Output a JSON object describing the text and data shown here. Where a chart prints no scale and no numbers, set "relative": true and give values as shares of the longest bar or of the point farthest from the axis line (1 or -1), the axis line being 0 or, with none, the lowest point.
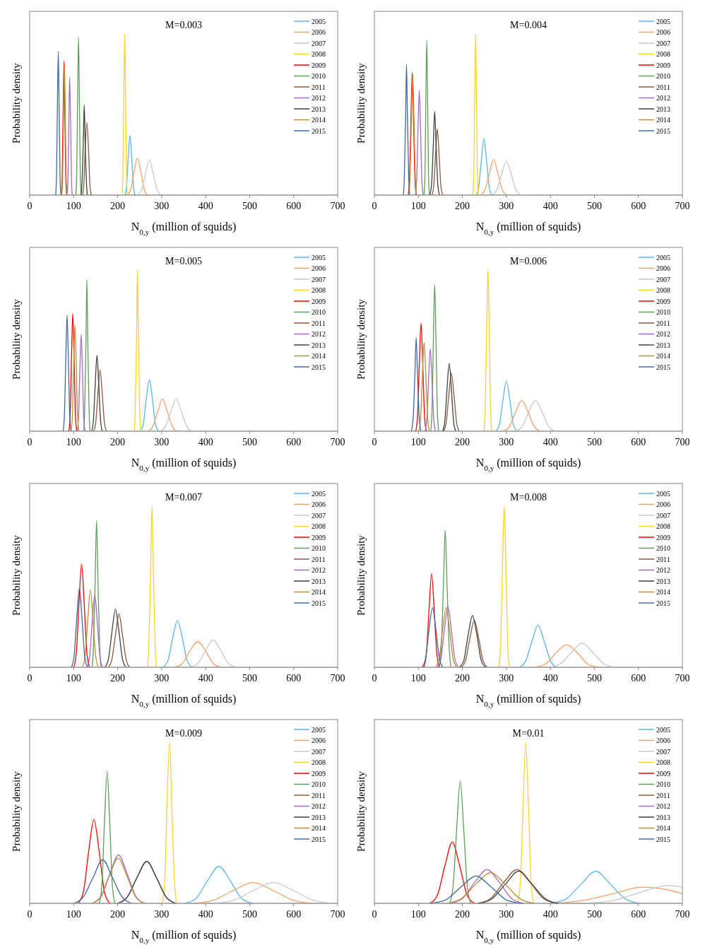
{
  "chart_data": [
    {
      "type": "line",
      "title": "M=0.003",
      "xlabel": "N$_{0,y}$ (million of squids)",
      "ylabel": "Probability density",
      "relative": true,
      "xlim": [
        0,
        700
      ],
      "xticks": [
        0,
        100,
        200,
        300,
        400,
        500,
        600,
        700
      ],
      "legend": "top right",
      "series": [
        {
          "name": "2005",
          "color": "#5bb5e8",
          "x": [
            216,
            220,
            224,
            228,
            232,
            236,
            240
          ],
          "values": [
            0,
            0.05,
            0.23,
            0.37,
            0.23,
            0.05,
            0
          ]
        },
        {
          "name": "2006",
          "color": "#f4a06a",
          "x": [
            221,
            229,
            237,
            245,
            253,
            261,
            269
          ],
          "values": [
            0,
            0.03,
            0.14,
            0.23,
            0.14,
            0.03,
            0
          ]
        },
        {
          "name": "2007",
          "color": "#c8c8c8",
          "x": [
            245,
            254,
            263,
            272,
            281,
            290,
            299
          ],
          "values": [
            0,
            0.03,
            0.13,
            0.22,
            0.13,
            0.03,
            0
          ]
        },
        {
          "name": "2008",
          "color": "#ffd12e",
          "x": [
            210,
            212,
            214,
            216,
            218,
            220,
            222
          ],
          "values": [
            0,
            0.14,
            0.61,
            1,
            0.61,
            0.14,
            0
          ]
        },
        {
          "name": "2009",
          "color": "#ff0000",
          "x": [
            72,
            74,
            76,
            78,
            80,
            82,
            84
          ],
          "values": [
            0,
            0.12,
            0.51,
            0.83,
            0.51,
            0.12,
            0
          ]
        },
        {
          "name": "2010",
          "color": "#5f9e5a",
          "x": [
            105,
            107,
            109,
            111,
            113,
            115,
            117
          ],
          "values": [
            0,
            0.14,
            0.6,
            0.98,
            0.6,
            0.14,
            0
          ]
        },
        {
          "name": "2011",
          "color": "#8b5a3c",
          "x": [
            120,
            123,
            126,
            130,
            134,
            137,
            140
          ],
          "values": [
            0,
            0.06,
            0.27,
            0.45,
            0.27,
            0.06,
            0
          ]
        },
        {
          "name": "2012",
          "color": "#a569c8",
          "x": [
            85,
            87,
            89,
            91,
            93,
            95,
            97
          ],
          "values": [
            0,
            0.1,
            0.45,
            0.73,
            0.45,
            0.1,
            0
          ]
        },
        {
          "name": "2013",
          "color": "#404040",
          "x": [
            117,
            119,
            122,
            124,
            126,
            129,
            131
          ],
          "values": [
            0,
            0.08,
            0.34,
            0.56,
            0.34,
            0.08,
            0
          ]
        },
        {
          "name": "2014",
          "color": "#b8903a",
          "x": [
            73,
            75,
            77,
            79,
            81,
            83,
            85
          ],
          "values": [
            0,
            0.11,
            0.5,
            0.82,
            0.5,
            0.11,
            0
          ]
        },
        {
          "name": "2015",
          "color": "#3f6aa0",
          "x": [
            59,
            61,
            63,
            65,
            67,
            69,
            71
          ],
          "values": [
            0,
            0.12,
            0.54,
            0.89,
            0.54,
            0.12,
            0
          ]
        }
      ]
    },
    {
      "type": "line",
      "title": "M=0.004",
      "xlabel": "N$_{0,y}$ (million of squids)",
      "ylabel": "Probability density",
      "relative": true,
      "xlim": [
        0,
        700
      ],
      "xticks": [
        0,
        100,
        200,
        300,
        400,
        500,
        600,
        700
      ],
      "legend": "top right",
      "series": [
        {
          "name": "2005",
          "color": "#5bb5e8",
          "x": [
            231,
            237,
            243,
            249,
            255,
            261,
            267
          ],
          "values": [
            0,
            0.05,
            0.21,
            0.35,
            0.21,
            0.05,
            0
          ]
        },
        {
          "name": "2006",
          "color": "#f4a06a",
          "x": [
            241,
            251,
            261,
            271,
            281,
            291,
            301
          ],
          "values": [
            0,
            0.03,
            0.13,
            0.22,
            0.13,
            0.03,
            0
          ]
        },
        {
          "name": "2007",
          "color": "#c8c8c8",
          "x": [
            267,
            278,
            289,
            300,
            311,
            322,
            333
          ],
          "values": [
            0,
            0.03,
            0.13,
            0.21,
            0.13,
            0.03,
            0
          ]
        },
        {
          "name": "2008",
          "color": "#ffd12e",
          "x": [
            224,
            226,
            228,
            230,
            232,
            234,
            236
          ],
          "values": [
            0,
            0.14,
            0.61,
            1,
            0.61,
            0.14,
            0
          ]
        },
        {
          "name": "2009",
          "color": "#ff0000",
          "x": [
            77,
            80,
            83,
            86,
            89,
            92,
            95
          ],
          "values": [
            0,
            0.11,
            0.46,
            0.76,
            0.46,
            0.11,
            0
          ]
        },
        {
          "name": "2010",
          "color": "#5f9e5a",
          "x": [
            113,
            115,
            117,
            119,
            121,
            123,
            125
          ],
          "values": [
            0,
            0.13,
            0.59,
            0.96,
            0.59,
            0.13,
            0
          ]
        },
        {
          "name": "2011",
          "color": "#8b5a3c",
          "x": [
            131,
            135,
            139,
            143,
            147,
            151,
            155
          ],
          "values": [
            0,
            0.06,
            0.25,
            0.41,
            0.25,
            0.06,
            0
          ]
        },
        {
          "name": "2012",
          "color": "#a569c8",
          "x": [
            93,
            96,
            99,
            102,
            105,
            108,
            111
          ],
          "values": [
            0,
            0.09,
            0.4,
            0.65,
            0.4,
            0.09,
            0
          ]
        },
        {
          "name": "2013",
          "color": "#404040",
          "x": [
            126,
            130,
            134,
            137,
            140,
            144,
            148
          ],
          "values": [
            0,
            0.07,
            0.32,
            0.52,
            0.32,
            0.07,
            0
          ]
        },
        {
          "name": "2014",
          "color": "#b8903a",
          "x": [
            78,
            81,
            84,
            87,
            90,
            93,
            96
          ],
          "values": [
            0,
            0.11,
            0.46,
            0.75,
            0.46,
            0.11,
            0
          ]
        },
        {
          "name": "2015",
          "color": "#3f6aa0",
          "x": [
            66,
            68,
            71,
            73,
            75,
            78,
            80
          ],
          "values": [
            0,
            0.11,
            0.49,
            0.81,
            0.49,
            0.11,
            0
          ]
        }
      ]
    },
    {
      "type": "line",
      "title": "M=0.005",
      "xlabel": "N$_{0,y}$ (million of squids)",
      "ylabel": "Probability density",
      "relative": true,
      "xlim": [
        0,
        700
      ],
      "xticks": [
        0,
        100,
        200,
        300,
        400,
        500,
        600,
        700
      ],
      "legend": "top right",
      "series": [
        {
          "name": "2005",
          "color": "#5bb5e8",
          "x": [
            251,
            258,
            265,
            272,
            279,
            286,
            293
          ],
          "values": [
            0,
            0.04,
            0.2,
            0.32,
            0.2,
            0.04,
            0
          ]
        },
        {
          "name": "2006",
          "color": "#f4a06a",
          "x": [
            269,
            280,
            291,
            302,
            313,
            324,
            335
          ],
          "values": [
            0,
            0.03,
            0.12,
            0.2,
            0.12,
            0.03,
            0
          ]
        },
        {
          "name": "2007",
          "color": "#c8c8c8",
          "x": [
            297,
            309,
            321,
            333,
            345,
            357,
            369
          ],
          "values": [
            0,
            0.03,
            0.12,
            0.2,
            0.12,
            0.03,
            0
          ]
        },
        {
          "name": "2008",
          "color": "#ffd12e",
          "x": [
            238,
            240,
            243,
            245,
            247,
            250,
            252
          ],
          "values": [
            0,
            0.14,
            0.61,
            1,
            0.61,
            0.14,
            0
          ]
        },
        {
          "name": "2009",
          "color": "#ff0000",
          "x": [
            89,
            92,
            95,
            98,
            101,
            104,
            107
          ],
          "values": [
            0,
            0.1,
            0.45,
            0.73,
            0.45,
            0.1,
            0
          ]
        },
        {
          "name": "2010",
          "color": "#5f9e5a",
          "x": [
            123,
            125,
            128,
            130,
            132,
            135,
            137
          ],
          "values": [
            0,
            0.13,
            0.57,
            0.94,
            0.57,
            0.13,
            0
          ]
        },
        {
          "name": "2011",
          "color": "#8b5a3c",
          "x": [
            145,
            150,
            155,
            160,
            165,
            170,
            175
          ],
          "values": [
            0,
            0.05,
            0.23,
            0.38,
            0.23,
            0.05,
            0
          ]
        },
        {
          "name": "2012",
          "color": "#a569c8",
          "x": [
            108,
            111,
            114,
            117,
            120,
            123,
            126
          ],
          "values": [
            0,
            0.08,
            0.37,
            0.6,
            0.37,
            0.08,
            0
          ]
        },
        {
          "name": "2013",
          "color": "#404040",
          "x": [
            141,
            145,
            149,
            153,
            157,
            161,
            165
          ],
          "values": [
            0,
            0.07,
            0.29,
            0.47,
            0.29,
            0.07,
            0
          ]
        },
        {
          "name": "2014",
          "color": "#b8903a",
          "x": [
            94,
            97,
            100,
            103,
            106,
            109,
            112
          ],
          "values": [
            0,
            0.09,
            0.4,
            0.66,
            0.4,
            0.09,
            0
          ]
        },
        {
          "name": "2015",
          "color": "#3f6aa0",
          "x": [
            76,
            79,
            82,
            85,
            88,
            91,
            94
          ],
          "values": [
            0,
            0.1,
            0.44,
            0.72,
            0.44,
            0.1,
            0
          ]
        }
      ]
    },
    {
      "type": "line",
      "title": "M=0.006",
      "xlabel": "N$_{0,y}$ (million of squids)",
      "ylabel": "Probability density",
      "relative": true,
      "xlim": [
        0,
        700
      ],
      "xticks": [
        0,
        100,
        200,
        300,
        400,
        500,
        600,
        700
      ],
      "legend": "top right",
      "series": [
        {
          "name": "2005",
          "color": "#5bb5e8",
          "x": [
            276,
            284,
            292,
            300,
            308,
            316,
            324
          ],
          "values": [
            0,
            0.04,
            0.19,
            0.31,
            0.19,
            0.04,
            0
          ]
        },
        {
          "name": "2006",
          "color": "#f4a06a",
          "x": [
            293,
            307,
            321,
            335,
            349,
            363,
            377
          ],
          "values": [
            0,
            0.03,
            0.12,
            0.19,
            0.12,
            0.03,
            0
          ]
        },
        {
          "name": "2007",
          "color": "#c8c8c8",
          "x": [
            321,
            336,
            351,
            366,
            381,
            396,
            411
          ],
          "values": [
            0,
            0.03,
            0.12,
            0.19,
            0.12,
            0.03,
            0
          ]
        },
        {
          "name": "2008",
          "color": "#ffd12e",
          "x": [
            249,
            252,
            255,
            258,
            261,
            264,
            267
          ],
          "values": [
            0,
            0.14,
            0.61,
            1,
            0.61,
            0.14,
            0
          ]
        },
        {
          "name": "2009",
          "color": "#ff0000",
          "x": [
            94,
            98,
            102,
            106,
            110,
            114,
            118
          ],
          "values": [
            0,
            0.09,
            0.41,
            0.67,
            0.41,
            0.09,
            0
          ]
        },
        {
          "name": "2010",
          "color": "#5f9e5a",
          "x": [
            128,
            131,
            134,
            137,
            140,
            143,
            146
          ],
          "values": [
            0,
            0.13,
            0.56,
            0.91,
            0.56,
            0.13,
            0
          ]
        },
        {
          "name": "2011",
          "color": "#8b5a3c",
          "x": [
            157,
            163,
            169,
            175,
            181,
            187,
            193
          ],
          "values": [
            0,
            0.05,
            0.22,
            0.36,
            0.22,
            0.05,
            0
          ]
        },
        {
          "name": "2012",
          "color": "#a569c8",
          "x": [
            115,
            119,
            123,
            127,
            131,
            135,
            139
          ],
          "values": [
            0,
            0.07,
            0.31,
            0.51,
            0.31,
            0.07,
            0
          ]
        },
        {
          "name": "2013",
          "color": "#404040",
          "x": [
            155,
            160,
            165,
            170,
            175,
            180,
            185
          ],
          "values": [
            0,
            0.06,
            0.26,
            0.42,
            0.26,
            0.06,
            0
          ]
        },
        {
          "name": "2014",
          "color": "#b8903a",
          "x": [
            101,
            105,
            109,
            113,
            117,
            121,
            125
          ],
          "values": [
            0,
            0.08,
            0.34,
            0.55,
            0.34,
            0.08,
            0
          ]
        },
        {
          "name": "2015",
          "color": "#3f6aa0",
          "x": [
            84,
            88,
            92,
            95,
            98,
            102,
            106
          ],
          "values": [
            0,
            0.08,
            0.35,
            0.58,
            0.35,
            0.08,
            0
          ]
        }
      ]
    },
    {
      "type": "line",
      "title": "M=0.007",
      "xlabel": "N$_{0,y}$ (million of squids)",
      "ylabel": "Probability density",
      "relative": true,
      "xlim": [
        0,
        700
      ],
      "xticks": [
        0,
        100,
        200,
        300,
        400,
        500,
        600,
        700
      ],
      "legend": "top right",
      "series": [
        {
          "name": "2005",
          "color": "#5bb5e8",
          "x": [
            303,
            314,
            325,
            336,
            347,
            358,
            369
          ],
          "values": [
            0,
            0.04,
            0.18,
            0.29,
            0.18,
            0.04,
            0
          ]
        },
        {
          "name": "2006",
          "color": "#f4a06a",
          "x": [
            328,
            346,
            364,
            382,
            400,
            418,
            436
          ],
          "values": [
            0,
            0.02,
            0.1,
            0.16,
            0.1,
            0.02,
            0
          ]
        },
        {
          "name": "2007",
          "color": "#c8c8c8",
          "x": [
            363,
            381,
            399,
            417,
            435,
            453,
            471
          ],
          "values": [
            0,
            0.02,
            0.1,
            0.17,
            0.1,
            0.02,
            0
          ]
        },
        {
          "name": "2008",
          "color": "#ffd12e",
          "x": [
            268,
            271,
            275,
            278,
            281,
            285,
            288
          ],
          "values": [
            0,
            0.14,
            0.61,
            1,
            0.61,
            0.14,
            0
          ]
        },
        {
          "name": "2009",
          "color": "#ff0000",
          "x": [
            100,
            106,
            112,
            118,
            124,
            130,
            136
          ],
          "values": [
            0,
            0.09,
            0.39,
            0.64,
            0.39,
            0.09,
            0
          ]
        },
        {
          "name": "2010",
          "color": "#5f9e5a",
          "x": [
            142,
            145,
            149,
            152,
            155,
            159,
            162
          ],
          "values": [
            0,
            0.13,
            0.56,
            0.91,
            0.56,
            0.13,
            0
          ]
        },
        {
          "name": "2011",
          "color": "#8b5a3c",
          "x": [
            179,
            187,
            195,
            203,
            211,
            219,
            227
          ],
          "values": [
            0,
            0.05,
            0.2,
            0.33,
            0.2,
            0.05,
            0
          ]
        },
        {
          "name": "2012",
          "color": "#a569c8",
          "x": [
            130,
            136,
            142,
            148,
            154,
            160,
            166
          ],
          "values": [
            0,
            0.06,
            0.27,
            0.45,
            0.27,
            0.06,
            0
          ]
        },
        {
          "name": "2013",
          "color": "#404040",
          "x": [
            171,
            179,
            187,
            195,
            203,
            211,
            219
          ],
          "values": [
            0,
            0.05,
            0.22,
            0.36,
            0.22,
            0.05,
            0
          ]
        },
        {
          "name": "2014",
          "color": "#b8903a",
          "x": [
            120,
            126,
            132,
            138,
            144,
            150,
            156
          ],
          "values": [
            0,
            0.07,
            0.29,
            0.48,
            0.29,
            0.07,
            0
          ]
        },
        {
          "name": "2015",
          "color": "#3f6aa0",
          "x": [
            95,
            101,
            107,
            113,
            119,
            125,
            131
          ],
          "values": [
            0,
            0.07,
            0.3,
            0.49,
            0.3,
            0.07,
            0
          ]
        }
      ]
    },
    {
      "type": "line",
      "title": "M=0.008",
      "xlabel": "N$_{0,y}$ (million of squids)",
      "ylabel": "Probability density",
      "relative": true,
      "xlim": [
        0,
        700
      ],
      "xticks": [
        0,
        100,
        200,
        300,
        400,
        500,
        600,
        700
      ],
      "legend": "top right",
      "series": [
        {
          "name": "2005",
          "color": "#5bb5e8",
          "x": [
            330,
            344,
            358,
            372,
            386,
            400,
            414
          ],
          "values": [
            0,
            0.04,
            0.16,
            0.26,
            0.16,
            0.04,
            0
          ]
        },
        {
          "name": "2006",
          "color": "#f4a06a",
          "x": [
            365,
            389,
            413,
            437,
            461,
            485,
            509
          ],
          "values": [
            0,
            0.02,
            0.09,
            0.14,
            0.09,
            0.02,
            0
          ]
        },
        {
          "name": "2007",
          "color": "#c8c8c8",
          "x": [
            397,
            422,
            447,
            472,
            497,
            522,
            547
          ],
          "values": [
            0,
            0.02,
            0.09,
            0.15,
            0.09,
            0.02,
            0
          ]
        },
        {
          "name": "2008",
          "color": "#ffd12e",
          "x": [
            283,
            287,
            291,
            295,
            299,
            303,
            307
          ],
          "values": [
            0,
            0.14,
            0.61,
            1,
            0.61,
            0.14,
            0
          ]
        },
        {
          "name": "2009",
          "color": "#ff0000",
          "x": [
            112,
            118,
            124,
            130,
            136,
            142,
            148
          ],
          "values": [
            0,
            0.08,
            0.35,
            0.58,
            0.35,
            0.08,
            0
          ]
        },
        {
          "name": "2010",
          "color": "#5f9e5a",
          "x": [
            148,
            152,
            157,
            161,
            165,
            170,
            174
          ],
          "values": [
            0,
            0.12,
            0.52,
            0.85,
            0.52,
            0.12,
            0
          ]
        },
        {
          "name": "2011",
          "color": "#8b5a3c",
          "x": [
            197,
            207,
            217,
            227,
            237,
            247,
            257
          ],
          "values": [
            0,
            0.04,
            0.18,
            0.29,
            0.18,
            0.04,
            0
          ]
        },
        {
          "name": "2012",
          "color": "#a569c8",
          "x": [
            143,
            151,
            159,
            167,
            175,
            183,
            191
          ],
          "values": [
            0,
            0.05,
            0.23,
            0.38,
            0.23,
            0.05,
            0
          ]
        },
        {
          "name": "2013",
          "color": "#404040",
          "x": [
            193,
            203,
            213,
            223,
            233,
            243,
            253
          ],
          "values": [
            0,
            0.04,
            0.2,
            0.32,
            0.2,
            0.04,
            0
          ]
        },
        {
          "name": "2014",
          "color": "#b8903a",
          "x": [
            139,
            147,
            155,
            163,
            171,
            179,
            187
          ],
          "values": [
            0,
            0.05,
            0.23,
            0.37,
            0.23,
            0.05,
            0
          ]
        },
        {
          "name": "2015",
          "color": "#3f6aa0",
          "x": [
            108,
            116,
            124,
            132,
            140,
            148,
            156
          ],
          "values": [
            0,
            0.05,
            0.23,
            0.37,
            0.23,
            0.05,
            0
          ]
        }
      ]
    },
    {
      "type": "line",
      "title": "M=0.009",
      "xlabel": "N$_{0,y}$ (million of squids)",
      "ylabel": "Probability density",
      "relative": true,
      "xlim": [
        0,
        700
      ],
      "xticks": [
        0,
        100,
        200,
        300,
        400,
        500,
        600,
        700
      ],
      "legend": "top right",
      "series": [
        {
          "name": "2005",
          "color": "#5bb5e8",
          "x": [
            352,
            378,
            404,
            430,
            456,
            482,
            508
          ],
          "values": [
            0,
            0.03,
            0.14,
            0.23,
            0.14,
            0.03,
            0
          ]
        },
        {
          "name": "2006",
          "color": "#f4a06a",
          "x": [
            373,
            418,
            463,
            508,
            553,
            598,
            643
          ],
          "values": [
            0,
            0.02,
            0.08,
            0.13,
            0.08,
            0.02,
            0
          ]
        },
        {
          "name": "2007",
          "color": "#c8c8c8",
          "x": [
            419,
            464,
            509,
            554,
            599,
            644,
            689
          ],
          "values": [
            0,
            0.02,
            0.08,
            0.13,
            0.08,
            0.02,
            0
          ]
        },
        {
          "name": "2008",
          "color": "#ffd12e",
          "x": [
            301,
            307,
            312,
            318,
            323,
            329,
            334
          ],
          "values": [
            0,
            0.14,
            0.61,
            1,
            0.61,
            0.14,
            0
          ]
        },
        {
          "name": "2009",
          "color": "#ff0000",
          "x": [
            110,
            122,
            134,
            146,
            158,
            170,
            182
          ],
          "values": [
            0,
            0.07,
            0.32,
            0.52,
            0.32,
            0.07,
            0
          ]
        },
        {
          "name": "2010",
          "color": "#5f9e5a",
          "x": [
            158,
            164,
            170,
            176,
            182,
            188,
            194
          ],
          "values": [
            0,
            0.11,
            0.5,
            0.82,
            0.5,
            0.11,
            0
          ]
        },
        {
          "name": "2011",
          "color": "#8b5a3c",
          "x": [
            200,
            222,
            244,
            266,
            288,
            310,
            332
          ],
          "values": [
            0,
            0.04,
            0.16,
            0.26,
            0.16,
            0.04,
            0
          ]
        },
        {
          "name": "2012",
          "color": "#a569c8",
          "x": [
            142,
            162,
            182,
            202,
            222,
            242,
            262
          ],
          "values": [
            0,
            0.04,
            0.18,
            0.3,
            0.18,
            0.04,
            0
          ]
        },
        {
          "name": "2013",
          "color": "#404040",
          "x": [
            200,
            222,
            244,
            266,
            288,
            310,
            332
          ],
          "values": [
            0,
            0.04,
            0.16,
            0.26,
            0.16,
            0.04,
            0
          ]
        },
        {
          "name": "2014",
          "color": "#b8903a",
          "x": [
            141,
            161,
            181,
            201,
            221,
            241,
            261
          ],
          "values": [
            0,
            0.04,
            0.17,
            0.28,
            0.17,
            0.04,
            0
          ]
        },
        {
          "name": "2015",
          "color": "#3f6aa0",
          "x": [
            100,
            122,
            144,
            166,
            188,
            210,
            232
          ],
          "values": [
            0,
            0.04,
            0.16,
            0.27,
            0.16,
            0.04,
            0
          ]
        }
      ]
    },
    {
      "type": "line",
      "title": "M=0.01",
      "xlabel": "N$_{0,y}$ (million of squids)",
      "ylabel": "Probability density",
      "relative": true,
      "xlim": [
        0,
        700
      ],
      "xticks": [
        0,
        100,
        200,
        300,
        400,
        500,
        600,
        700
      ],
      "legend": "top right",
      "series": [
        {
          "name": "2005",
          "color": "#5bb5e8",
          "x": [
            404,
            437,
            470,
            503,
            536,
            569,
            602
          ],
          "values": [
            0,
            0.03,
            0.12,
            0.2,
            0.12,
            0.03,
            0
          ]
        },
        {
          "name": "2006",
          "color": "#f4a06a",
          "x": [
            413,
            478,
            543,
            608,
            673,
            700
          ],
          "values": [
            0,
            0.02,
            0.06,
            0.1,
            0.08,
            0.06
          ]
        },
        {
          "name": "2007",
          "color": "#c8c8c8",
          "x": [
            487,
            547,
            607,
            667,
            700
          ],
          "values": [
            0,
            0.02,
            0.07,
            0.11,
            0.1
          ]
        },
        {
          "name": "2008",
          "color": "#ffd12e",
          "x": [
            326,
            332,
            338,
            344,
            350,
            356,
            362
          ],
          "values": [
            0,
            0.14,
            0.61,
            1,
            0.61,
            0.14,
            0
          ]
        },
        {
          "name": "2009",
          "color": "#ff0000",
          "x": [
            126,
            143,
            160,
            177,
            194,
            211,
            228
          ],
          "values": [
            0,
            0.05,
            0.23,
            0.38,
            0.23,
            0.05,
            0
          ]
        },
        {
          "name": "2010",
          "color": "#5f9e5a",
          "x": [
            171,
            179,
            187,
            195,
            203,
            211,
            219
          ],
          "values": [
            0,
            0.11,
            0.46,
            0.76,
            0.46,
            0.11,
            0
          ]
        },
        {
          "name": "2011",
          "color": "#8b5a3c",
          "x": [
            234,
            264,
            294,
            324,
            354,
            384,
            414
          ],
          "values": [
            0,
            0.03,
            0.13,
            0.21,
            0.13,
            0.03,
            0
          ]
        },
        {
          "name": "2012",
          "color": "#a569c8",
          "x": [
            172,
            200,
            228,
            256,
            284,
            312,
            340
          ],
          "values": [
            0,
            0.03,
            0.13,
            0.21,
            0.13,
            0.03,
            0
          ]
        },
        {
          "name": "2013",
          "color": "#404040",
          "x": [
            238,
            268,
            298,
            328,
            358,
            388,
            418
          ],
          "values": [
            0,
            0.03,
            0.12,
            0.2,
            0.12,
            0.03,
            0
          ]
        },
        {
          "name": "2014",
          "color": "#b8903a",
          "x": [
            165,
            198,
            231,
            264,
            297,
            330,
            363
          ],
          "values": [
            0,
            0.03,
            0.12,
            0.19,
            0.12,
            0.03,
            0
          ]
        },
        {
          "name": "2015",
          "color": "#3f6aa0",
          "x": [
            126,
            161,
            196,
            231,
            266,
            301,
            336
          ],
          "values": [
            0,
            0.02,
            0.1,
            0.17,
            0.1,
            0.02,
            0
          ]
        }
      ]
    }
  ]
}
